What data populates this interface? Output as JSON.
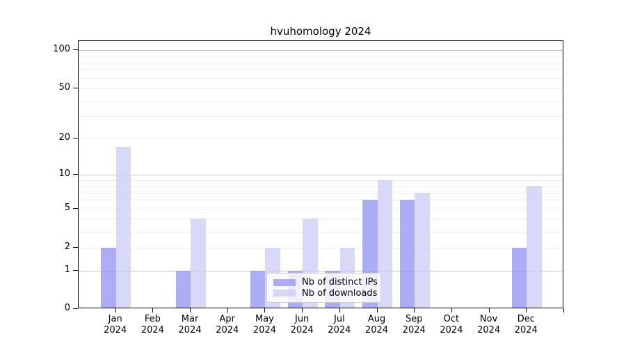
{
  "title": "hvuhomology 2024",
  "colors": {
    "ips_bar": "rgba(145,145,242,0.75)",
    "downloads_bar": "rgba(200,200,245,0.70)",
    "ips_solid": "#aaaaf5",
    "downloads_solid": "#d9d9f9",
    "grid_major": "#c2c2c2",
    "grid_minor": "#ececec",
    "axis": "#000000"
  },
  "legend": {
    "items": [
      {
        "label": "Nb of distinct IPs",
        "color_key": "ips_bar"
      },
      {
        "label": "Nb of downloads",
        "color_key": "downloads_bar"
      }
    ]
  },
  "chart_data": {
    "type": "bar",
    "title": "hvuhomology 2024",
    "categories": [
      "Jan 2024",
      "Feb 2024",
      "Mar 2024",
      "Apr 2024",
      "May 2024",
      "Jun 2024",
      "Jul 2024",
      "Aug 2024",
      "Sep 2024",
      "Oct 2024",
      "Nov 2024",
      "Dec 2024"
    ],
    "series": [
      {
        "name": "Nb of distinct IPs",
        "values": [
          2,
          0,
          1,
          0,
          1,
          1,
          1,
          6,
          6,
          0,
          0,
          2
        ]
      },
      {
        "name": "Nb of downloads",
        "values": [
          17,
          0,
          4,
          0,
          2,
          4,
          2,
          9,
          7,
          0,
          0,
          8
        ]
      }
    ],
    "xlabel": "",
    "ylabel": "",
    "yscale": "log(1+x)",
    "yticks": [
      0,
      1,
      2,
      5,
      10,
      20,
      50,
      100
    ],
    "grid_minor_values": [
      2,
      3,
      4,
      5,
      6,
      7,
      8,
      9,
      20,
      30,
      40,
      50,
      60,
      70,
      80,
      90
    ],
    "grid_major_values": [
      1,
      10,
      100
    ],
    "ylim": [
      0,
      117
    ],
    "grid": true,
    "legend_position": "lower center"
  }
}
